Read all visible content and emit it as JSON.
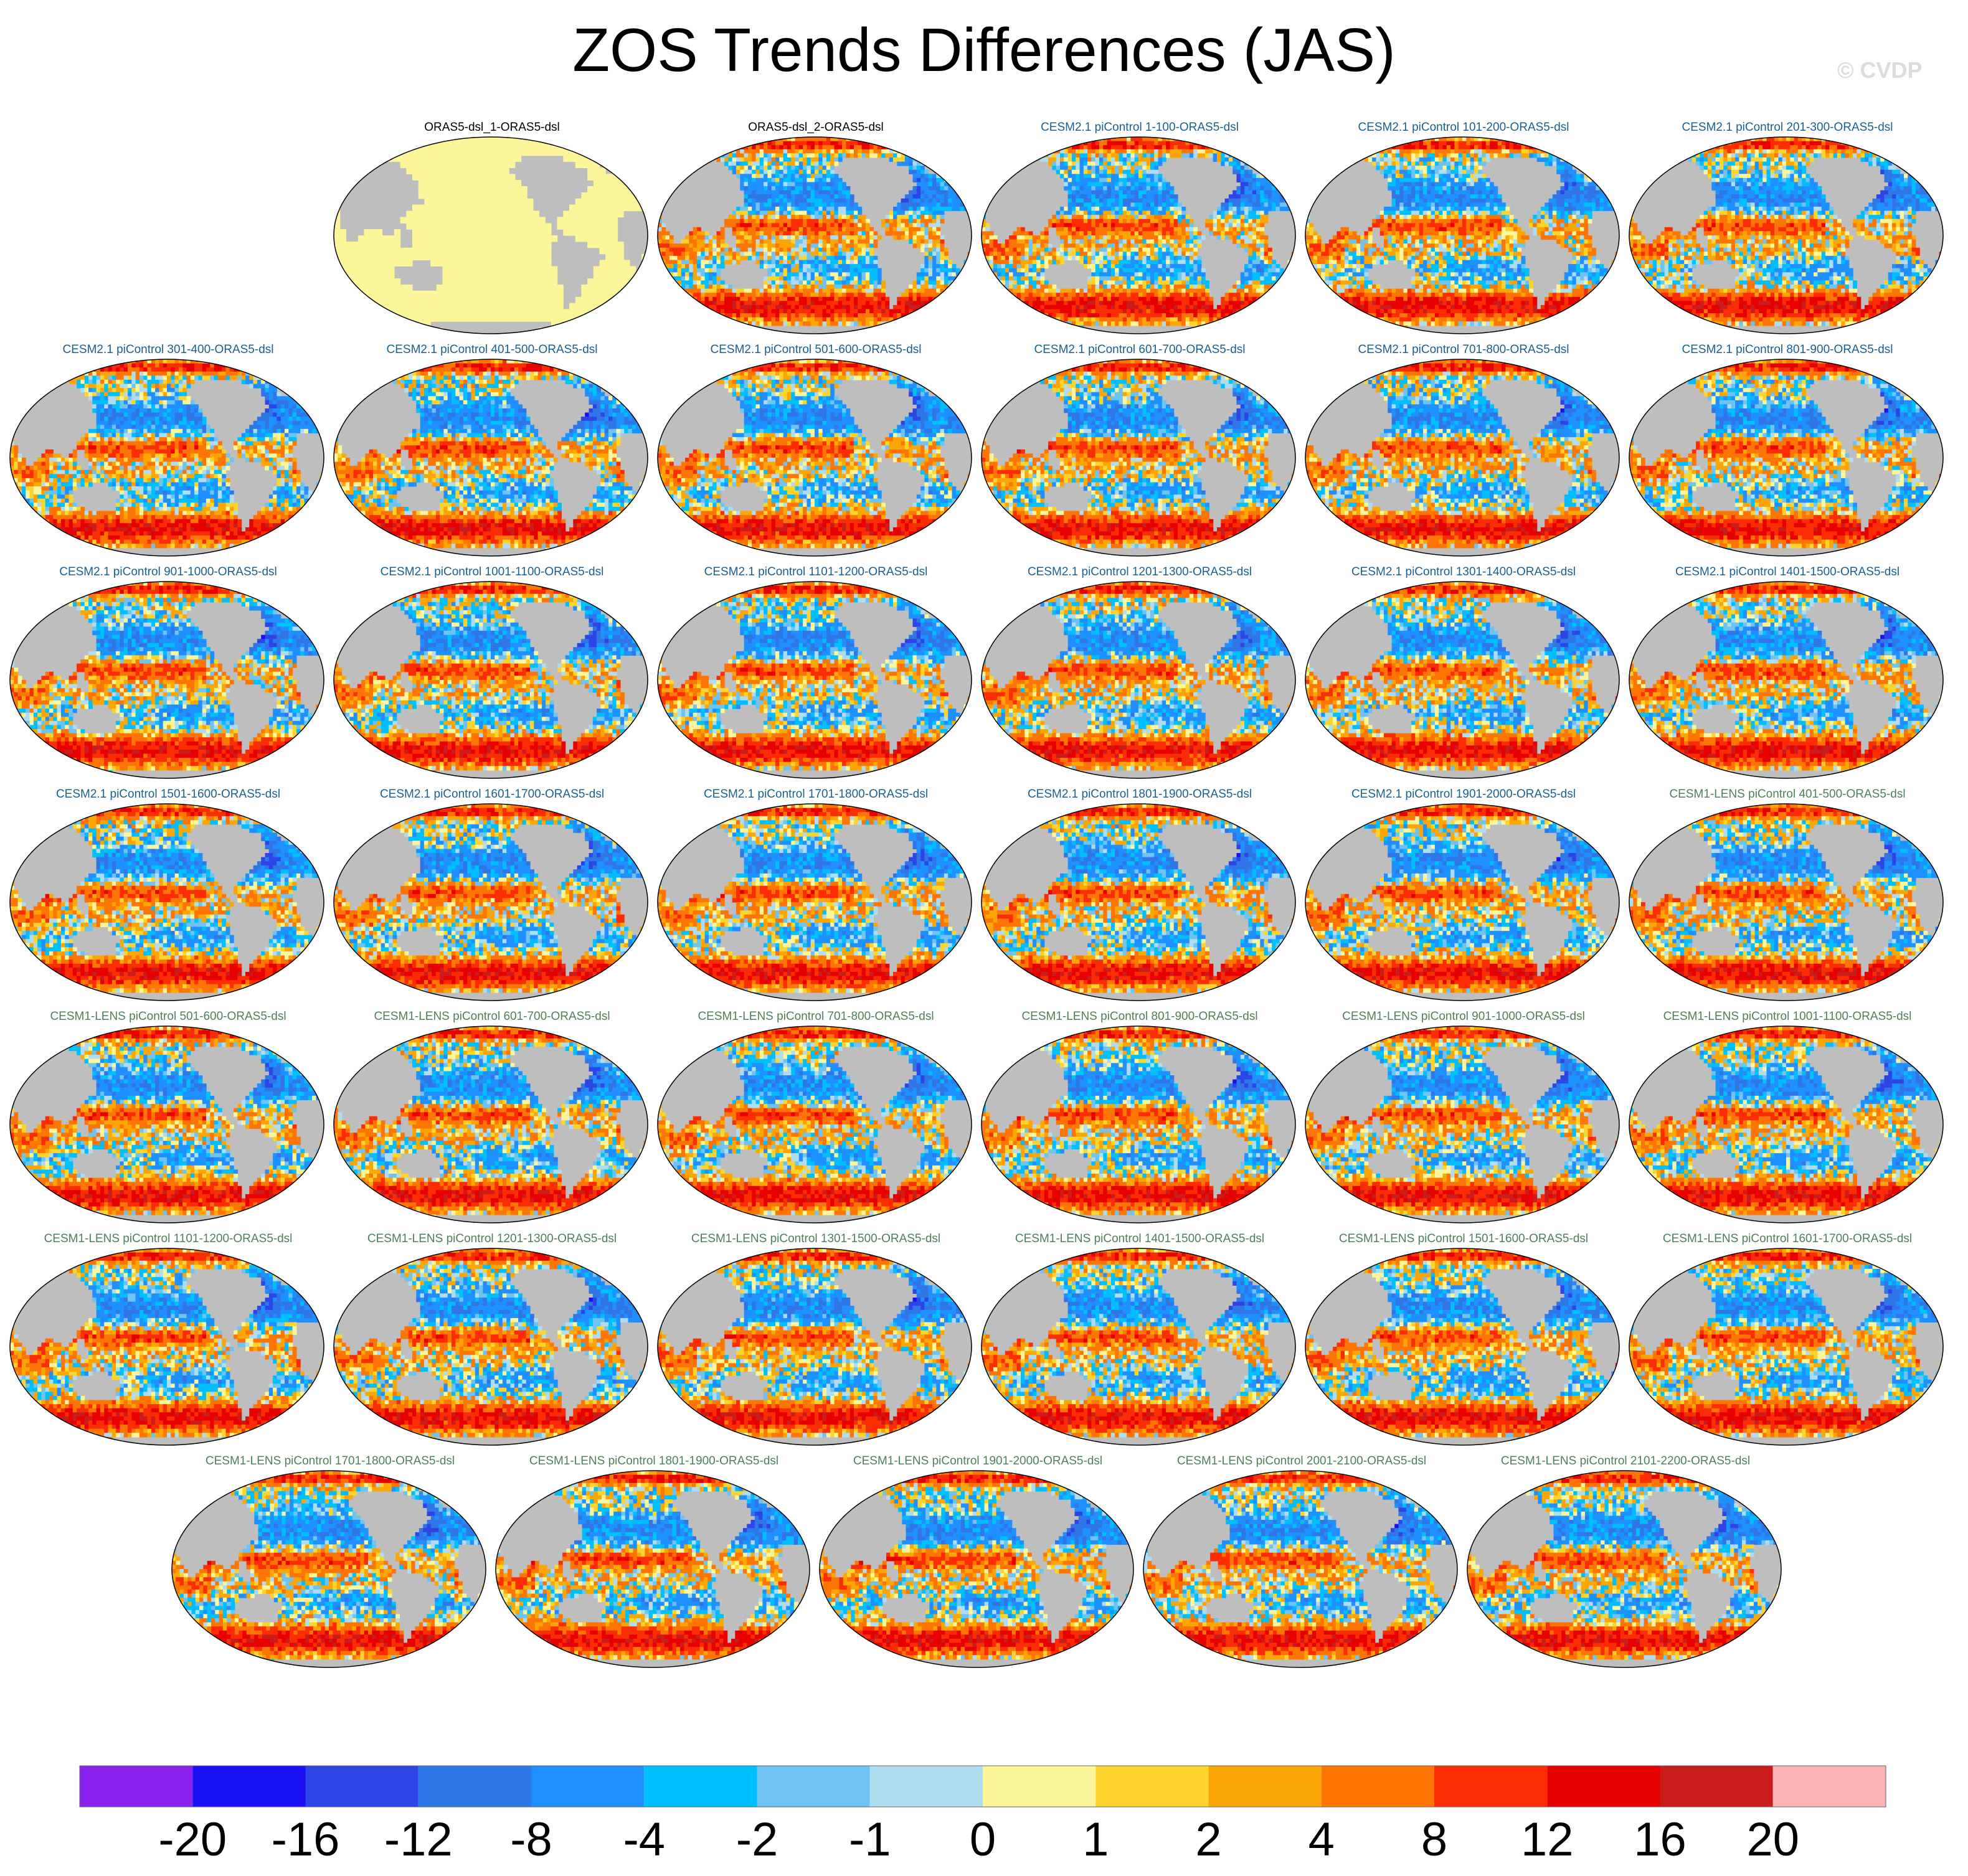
{
  "title": "ZOS Trends Differences (JAS)",
  "watermark": "© CVDP",
  "colors": {
    "land": "#bebebe",
    "ocean_zero": "#fdf59a",
    "label_obs": "#000000",
    "label_cesm2": "#1a5f8f",
    "label_cesm1": "#4f7f5a"
  },
  "chart_data": {
    "type": "heatmap",
    "variable": "ZOS",
    "season": "JAS",
    "panels": [
      {
        "label": "ORAS5-dsl_1-ORAS5-dsl",
        "group": "obs"
      },
      {
        "label": "ORAS5-dsl_2-ORAS5-dsl",
        "group": "obs"
      },
      {
        "label": "CESM2.1 piControl 1-100-ORAS5-dsl",
        "group": "cesm2"
      },
      {
        "label": "CESM2.1 piControl 101-200-ORAS5-dsl",
        "group": "cesm2"
      },
      {
        "label": "CESM2.1 piControl 201-300-ORAS5-dsl",
        "group": "cesm2"
      },
      {
        "label": "CESM2.1 piControl 301-400-ORAS5-dsl",
        "group": "cesm2"
      },
      {
        "label": "CESM2.1 piControl 401-500-ORAS5-dsl",
        "group": "cesm2"
      },
      {
        "label": "CESM2.1 piControl 501-600-ORAS5-dsl",
        "group": "cesm2"
      },
      {
        "label": "CESM2.1 piControl 601-700-ORAS5-dsl",
        "group": "cesm2"
      },
      {
        "label": "CESM2.1 piControl 701-800-ORAS5-dsl",
        "group": "cesm2"
      },
      {
        "label": "CESM2.1 piControl 801-900-ORAS5-dsl",
        "group": "cesm2"
      },
      {
        "label": "CESM2.1 piControl 901-1000-ORAS5-dsl",
        "group": "cesm2"
      },
      {
        "label": "CESM2.1 piControl 1001-1100-ORAS5-dsl",
        "group": "cesm2"
      },
      {
        "label": "CESM2.1 piControl 1101-1200-ORAS5-dsl",
        "group": "cesm2"
      },
      {
        "label": "CESM2.1 piControl 1201-1300-ORAS5-dsl",
        "group": "cesm2"
      },
      {
        "label": "CESM2.1 piControl 1301-1400-ORAS5-dsl",
        "group": "cesm2"
      },
      {
        "label": "CESM2.1 piControl 1401-1500-ORAS5-dsl",
        "group": "cesm2"
      },
      {
        "label": "CESM2.1 piControl 1501-1600-ORAS5-dsl",
        "group": "cesm2"
      },
      {
        "label": "CESM2.1 piControl 1601-1700-ORAS5-dsl",
        "group": "cesm2"
      },
      {
        "label": "CESM2.1 piControl 1701-1800-ORAS5-dsl",
        "group": "cesm2"
      },
      {
        "label": "CESM2.1 piControl 1801-1900-ORAS5-dsl",
        "group": "cesm2"
      },
      {
        "label": "CESM2.1 piControl 1901-2000-ORAS5-dsl",
        "group": "cesm2"
      },
      {
        "label": "CESM1-LENS piControl 401-500-ORAS5-dsl",
        "group": "cesm1"
      },
      {
        "label": "CESM1-LENS piControl 501-600-ORAS5-dsl",
        "group": "cesm1"
      },
      {
        "label": "CESM1-LENS piControl 601-700-ORAS5-dsl",
        "group": "cesm1"
      },
      {
        "label": "CESM1-LENS piControl 701-800-ORAS5-dsl",
        "group": "cesm1"
      },
      {
        "label": "CESM1-LENS piControl 801-900-ORAS5-dsl",
        "group": "cesm1"
      },
      {
        "label": "CESM1-LENS piControl 901-1000-ORAS5-dsl",
        "group": "cesm1"
      },
      {
        "label": "CESM1-LENS piControl 1001-1100-ORAS5-dsl",
        "group": "cesm1"
      },
      {
        "label": "CESM1-LENS piControl 1101-1200-ORAS5-dsl",
        "group": "cesm1"
      },
      {
        "label": "CESM1-LENS piControl 1201-1300-ORAS5-dsl",
        "group": "cesm1"
      },
      {
        "label": "CESM1-LENS piControl 1301-1500-ORAS5-dsl",
        "group": "cesm1"
      },
      {
        "label": "CESM1-LENS piControl 1401-1500-ORAS5-dsl",
        "group": "cesm1"
      },
      {
        "label": "CESM1-LENS piControl 1501-1600-ORAS5-dsl",
        "group": "cesm1"
      },
      {
        "label": "CESM1-LENS piControl 1601-1700-ORAS5-dsl",
        "group": "cesm1"
      },
      {
        "label": "CESM1-LENS piControl 1701-1800-ORAS5-dsl",
        "group": "cesm1"
      },
      {
        "label": "CESM1-LENS piControl 1801-1900-ORAS5-dsl",
        "group": "cesm1"
      },
      {
        "label": "CESM1-LENS piControl 1901-2000-ORAS5-dsl",
        "group": "cesm1"
      },
      {
        "label": "CESM1-LENS piControl 2001-2100-ORAS5-dsl",
        "group": "cesm1"
      },
      {
        "label": "CESM1-LENS piControl 2101-2200-ORAS5-dsl",
        "group": "cesm1"
      }
    ],
    "colorbar": {
      "tick_labels": [
        "-20",
        "-16",
        "-12",
        "-8",
        "-4",
        "-2",
        "-1",
        "0",
        "1",
        "2",
        "4",
        "8",
        "12",
        "16",
        "20"
      ],
      "colors": [
        "#8a22ee",
        "#1a10f5",
        "#2c45e6",
        "#3176e6",
        "#1e90ff",
        "#00bfff",
        "#6ec3f0",
        "#b0dcf2",
        "#fdf59a",
        "#fdd32e",
        "#fca605",
        "#fc7505",
        "#fb2d05",
        "#e60000",
        "#cb1c1c",
        "#fbb4b4"
      ]
    }
  }
}
